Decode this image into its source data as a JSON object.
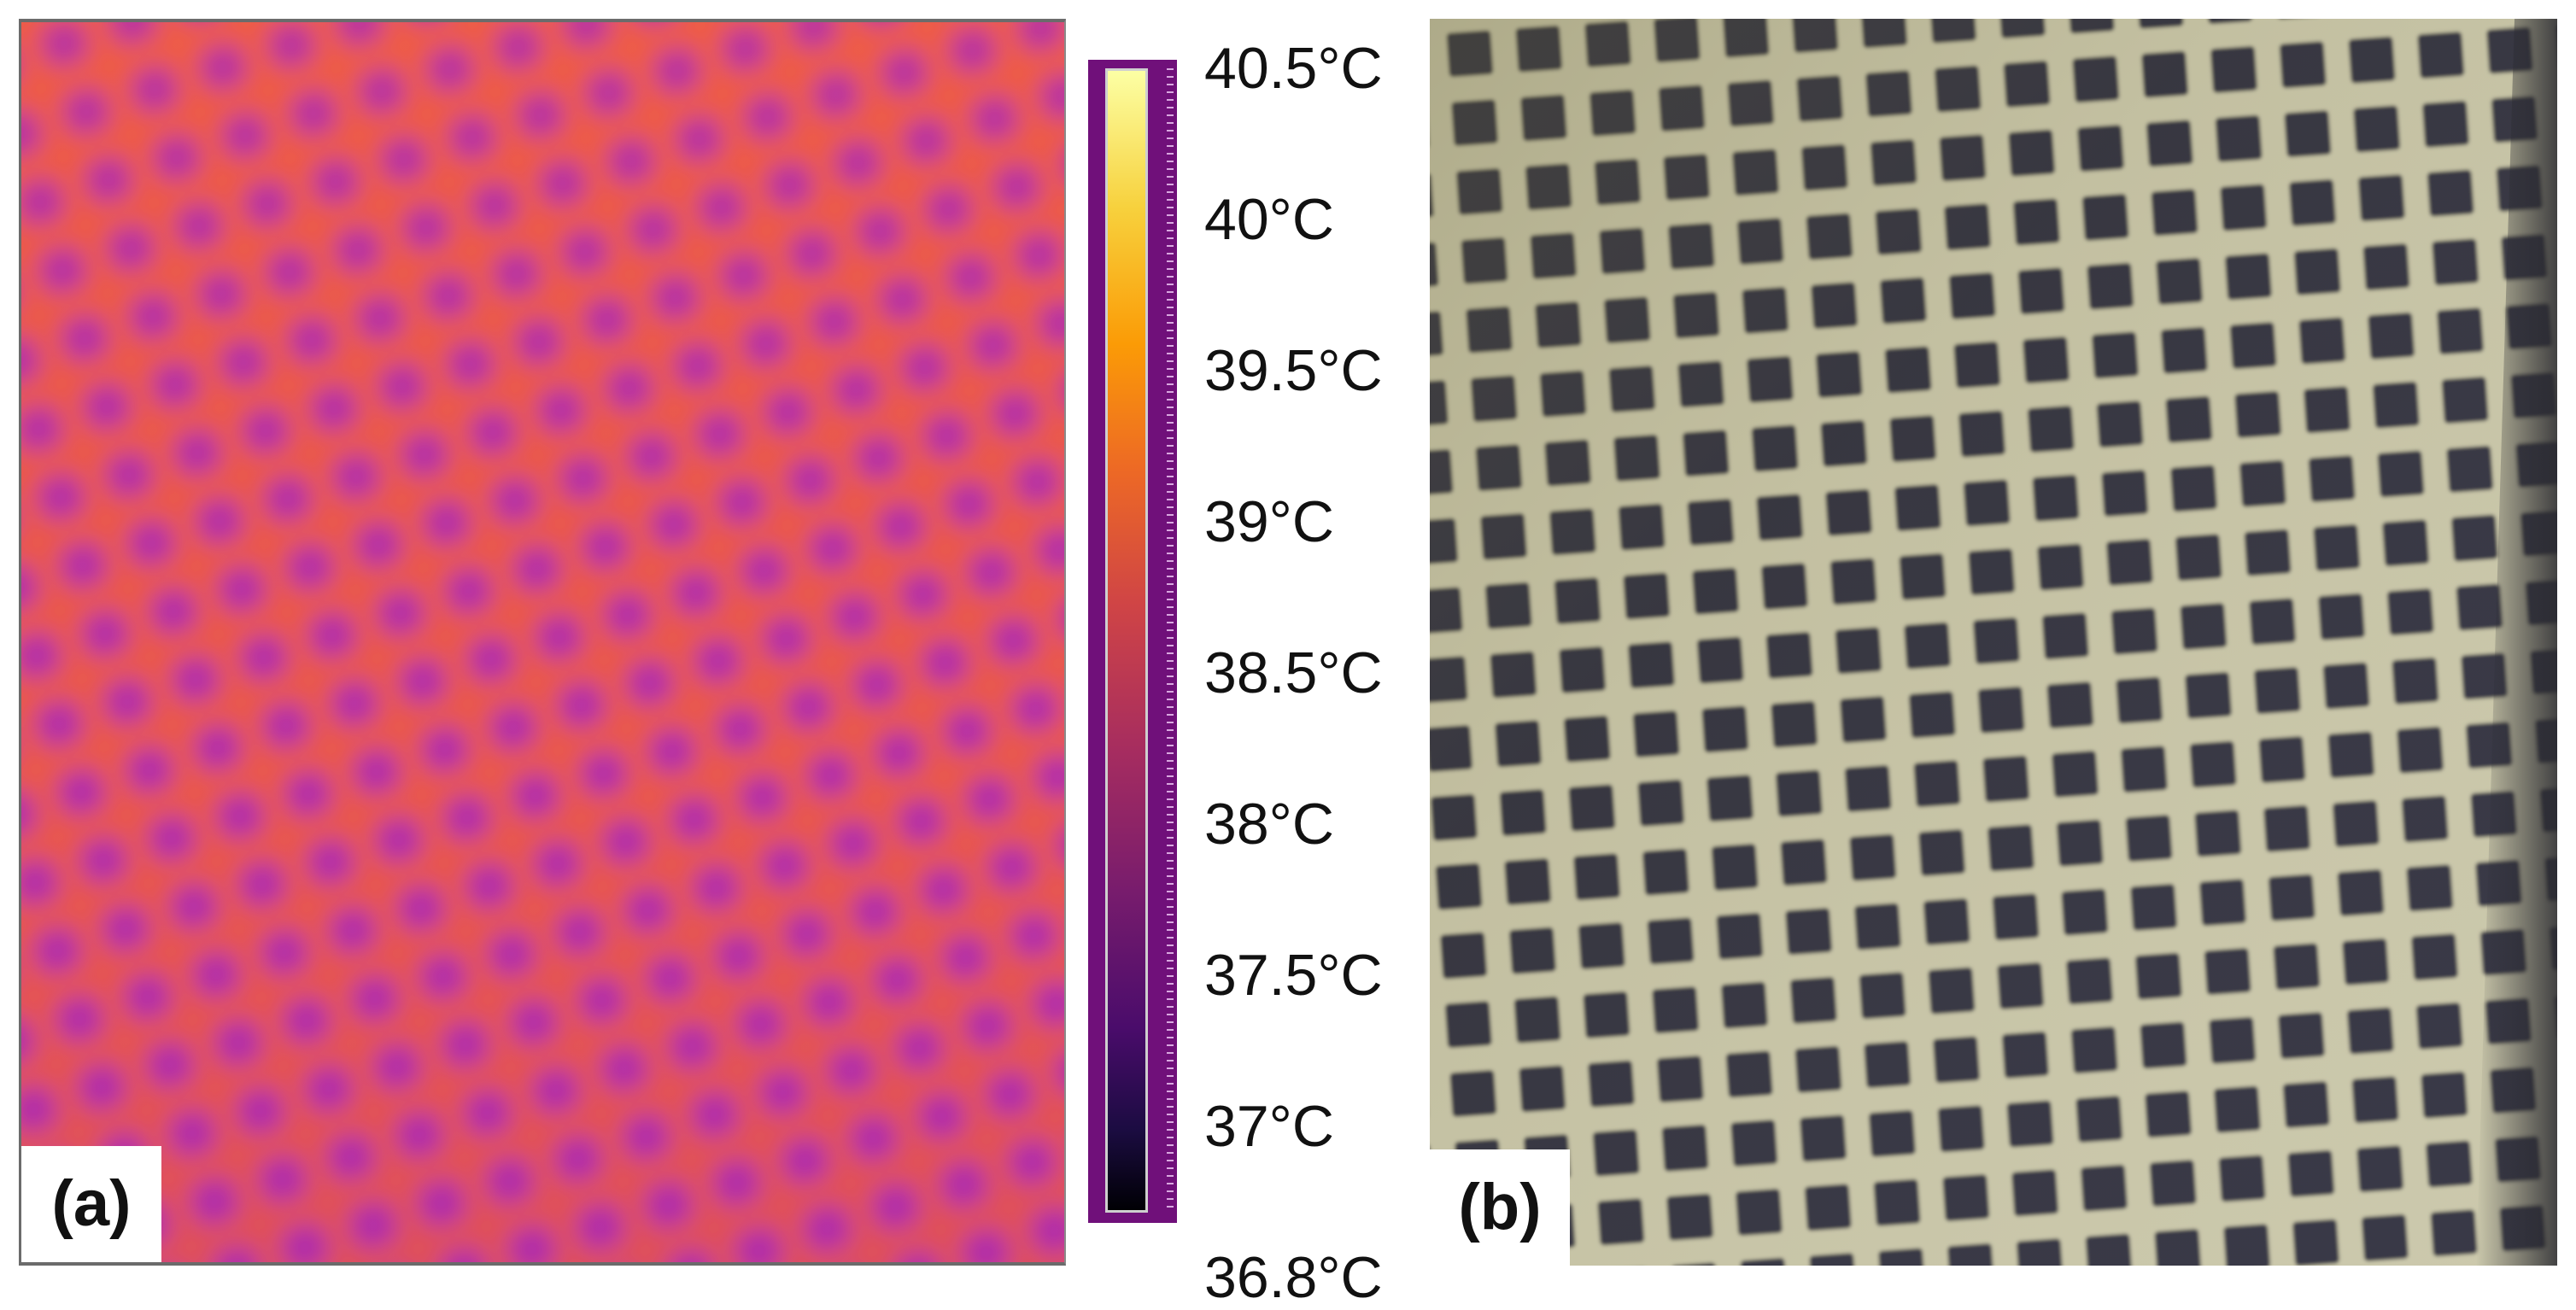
{
  "panel_a": {
    "label": "(a)",
    "colormap": "inferno"
  },
  "colorbar": {
    "labels": [
      "40.5°C",
      "40°C",
      "39.5°C",
      "39°C",
      "38.5°C",
      "38°C",
      "37.5°C",
      "37°C",
      "36.8°C"
    ]
  },
  "panel_b": {
    "label": "(b)"
  },
  "colors": {
    "thermal_hot": "#ee5a45",
    "thermal_cool": "#b62ca8",
    "photo_grid": "#c6c3a4",
    "photo_holes": "#2c2c3c"
  }
}
